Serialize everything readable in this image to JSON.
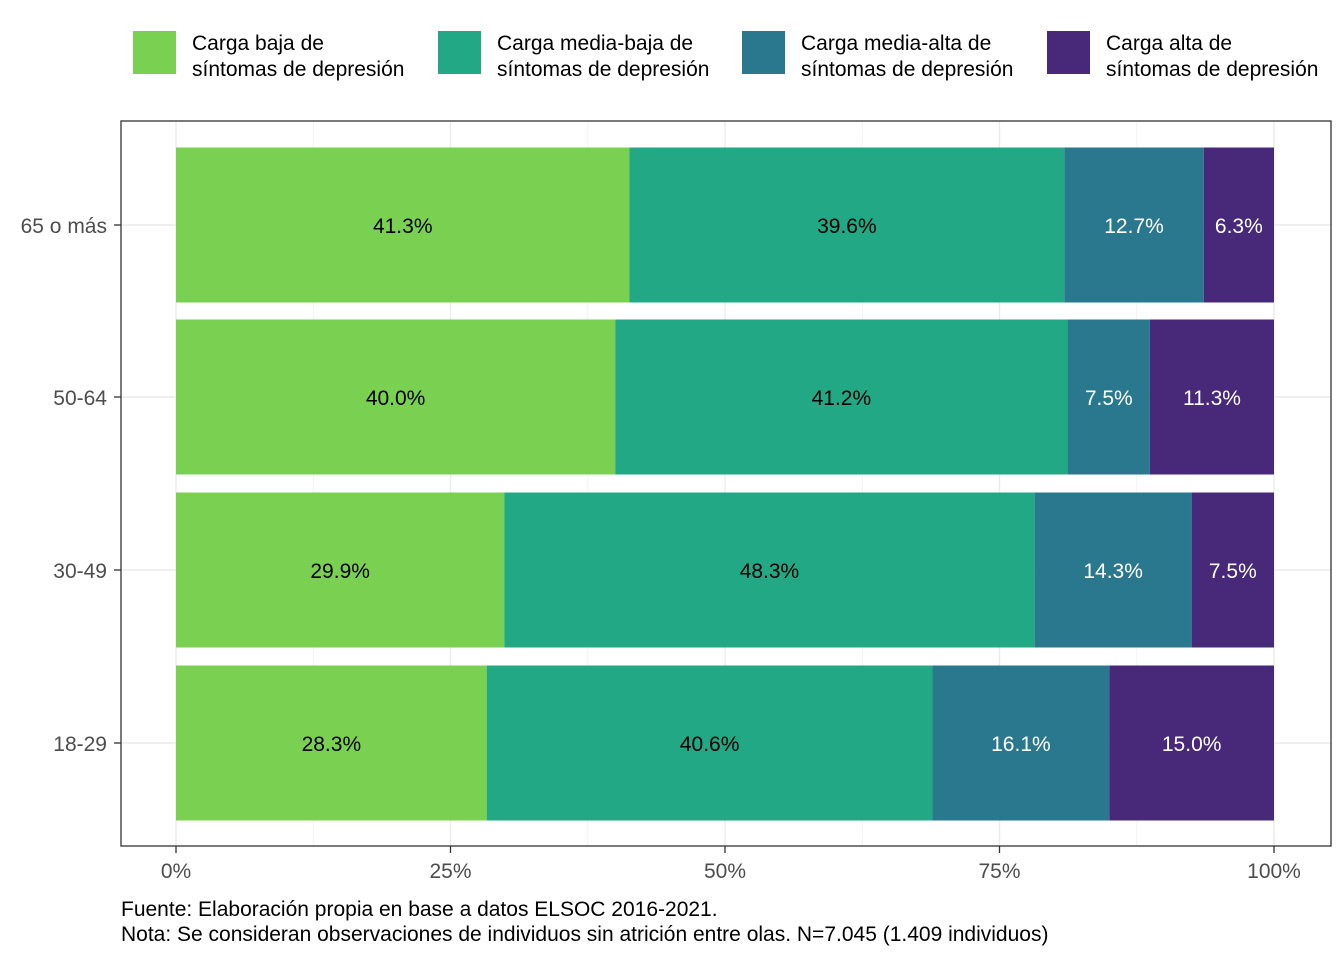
{
  "chart_data": {
    "type": "bar",
    "orientation": "horizontal",
    "stacked": true,
    "categories": [
      "65 o más",
      "50-64",
      "30-49",
      "18-29"
    ],
    "series": [
      {
        "name": "Carga baja de síntomas de depresión",
        "name_lines": [
          "Carga baja de",
          "síntomas de depresión"
        ],
        "color": "#7AD151",
        "values": [
          41.3,
          40.0,
          29.9,
          28.3
        ],
        "labels": [
          "41.3%",
          "40.0%",
          "29.9%",
          "28.3%"
        ],
        "label_color": "#000000"
      },
      {
        "name": "Carga media-baja de síntomas de depresión",
        "name_lines": [
          "Carga media-baja de",
          "síntomas de depresión"
        ],
        "color": "#22A884",
        "values": [
          39.6,
          41.2,
          48.3,
          40.6
        ],
        "labels": [
          "39.6%",
          "41.2%",
          "48.3%",
          "40.6%"
        ],
        "label_color": "#000000"
      },
      {
        "name": "Carga media-alta de síntomas de depresión",
        "name_lines": [
          "Carga media-alta de",
          "síntomas de depresión"
        ],
        "color": "#2A788E",
        "values": [
          12.7,
          7.5,
          14.3,
          16.1
        ],
        "labels": [
          "12.7%",
          "7.5%",
          "14.3%",
          "16.1%"
        ],
        "label_color": "#ffffff"
      },
      {
        "name": "Carga alta de síntomas de depresión",
        "name_lines": [
          "Carga alta de",
          "síntomas de depresión"
        ],
        "color": "#482878",
        "values": [
          6.3,
          11.3,
          7.5,
          15.0
        ],
        "labels": [
          "6.3%",
          "11.3%",
          "7.5%",
          "15.0%"
        ],
        "label_color": "#ffffff"
      }
    ],
    "xlim": [
      0,
      100
    ],
    "x_ticks": [
      0,
      25,
      50,
      75,
      100
    ],
    "x_tick_labels": [
      "0%",
      "25%",
      "50%",
      "75%",
      "100%"
    ],
    "grid": true,
    "legend_position": "top"
  },
  "caption": {
    "source": "Fuente: Elaboración propia en base a datos ELSOC 2016-2021.",
    "note": "Nota: Se consideran observaciones de individuos sin atrición entre olas. N=7.045 (1.409 individuos)"
  }
}
